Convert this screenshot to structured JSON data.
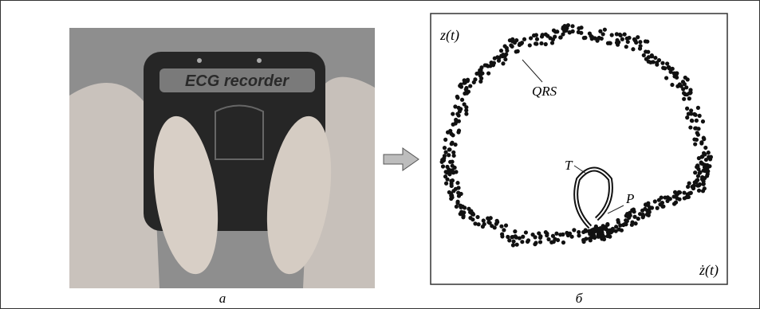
{
  "figure": {
    "photo": {
      "device_label": "ECG recorder",
      "caption": "a"
    },
    "portrait": {
      "y_label": "z(t)",
      "x_label": "ż(t)",
      "annotations": [
        "QRS",
        "T",
        "P"
      ],
      "caption": "б"
    }
  }
}
